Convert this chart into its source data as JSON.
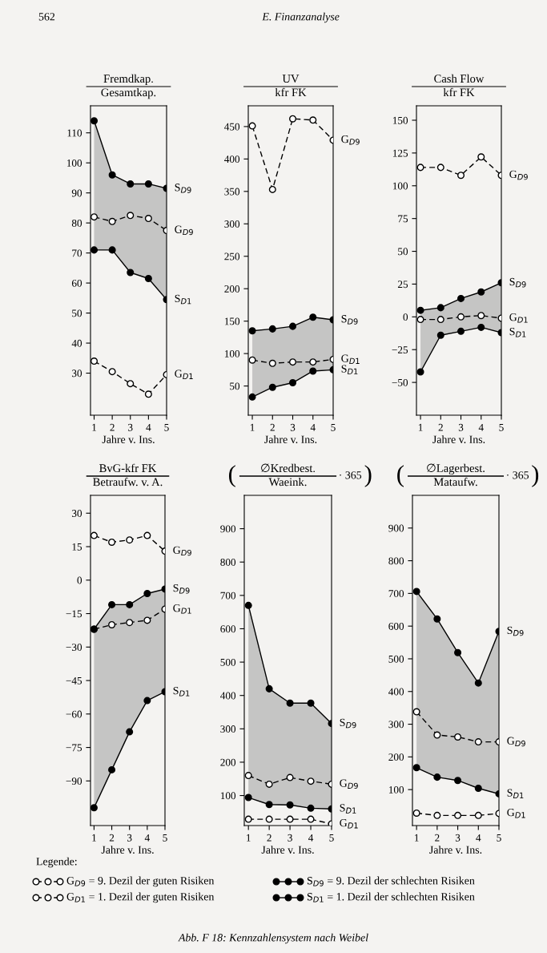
{
  "chart_data": [
    {
      "type": "line",
      "title": "Fremdkap.",
      "subtitle": "Gesamtkap.",
      "xlabel": "Jahre v. Ins.",
      "categories": [
        "1",
        "2",
        "3",
        "4",
        "5"
      ],
      "ylim": [
        16,
        119
      ],
      "yticks": [
        30,
        40,
        50,
        60,
        70,
        80,
        90,
        100,
        110
      ],
      "marker": "circle",
      "annotations": [
        "562",
        "E. Finanzanalyse"
      ],
      "series": [
        {
          "name": "G$_{D9}$",
          "color": "#000000",
          "line_style": "dashed",
          "values": [
            82,
            80.5,
            82.5,
            81.5,
            77.5
          ],
          "upper": [
            114,
            96,
            93,
            93,
            91.5
          ],
          "lower": [
            71,
            71,
            63.5,
            61.5,
            54.5
          ]
        },
        {
          "name": "G$_{D1}$",
          "color": "#000000",
          "line_style": "dashed",
          "values": [
            34,
            30.5,
            26.5,
            23,
            29.5
          ]
        },
        {
          "name": "S$_{D9}$",
          "color": "#000000",
          "line_style": "solid",
          "values": [
            114,
            96,
            93,
            93,
            91.5
          ]
        },
        {
          "name": "S$_{D1}$",
          "color": "#000000",
          "line_style": "solid",
          "values": [
            71,
            71,
            63.5,
            61.5,
            54.5
          ]
        }
      ]
    },
    {
      "type": "line",
      "title": "UV",
      "subtitle": "kfr FK",
      "xlabel": "Jahre v. Ins.",
      "categories": [
        "1",
        "2",
        "3",
        "4",
        "5"
      ],
      "ylim": [
        5,
        482
      ],
      "yticks": [
        50,
        100,
        150,
        200,
        250,
        300,
        350,
        400,
        450
      ],
      "marker": "circle",
      "series": [
        {
          "name": "G$_{D9}$",
          "color": "#000000",
          "line_style": "dashed",
          "values": [
            451,
            353,
            462,
            460,
            429
          ]
        },
        {
          "name": "G$_{D1}$",
          "color": "#000000",
          "line_style": "dashed",
          "values": [
            90,
            85,
            87,
            87,
            91
          ],
          "upper": [
            135,
            138,
            142,
            156,
            152
          ],
          "lower": [
            33,
            48,
            55,
            73,
            75
          ]
        },
        {
          "name": "S$_{D9}$",
          "color": "#000000",
          "line_style": "solid",
          "values": [
            135,
            138,
            142,
            156,
            152
          ]
        },
        {
          "name": "S$_{D1}$",
          "color": "#000000",
          "line_style": "solid",
          "values": [
            33,
            48,
            55,
            73,
            75
          ]
        }
      ]
    },
    {
      "type": "line",
      "title": "Cash Flow",
      "subtitle": "kfr FK",
      "xlabel": "Jahre v. Ins.",
      "categories": [
        "1",
        "2",
        "3",
        "4",
        "5"
      ],
      "ylim": [
        -75,
        161
      ],
      "yticks": [
        {
          "value": -50,
          "label": "−50"
        },
        {
          "value": -25,
          "label": "−25"
        },
        0,
        25,
        50,
        75,
        100,
        125,
        150
      ],
      "marker": "circle",
      "series": [
        {
          "name": "G$_{D9}$",
          "color": "#000000",
          "line_style": "dashed",
          "values": [
            114,
            114,
            108,
            122,
            108
          ]
        },
        {
          "name": "G$_{D1}$",
          "color": "#000000",
          "line_style": "dashed",
          "values": [
            -2,
            -2,
            0,
            1,
            -1
          ],
          "upper": [
            5,
            7,
            14,
            19,
            26
          ],
          "lower": [
            -42,
            -14,
            -11,
            -8,
            -12
          ]
        },
        {
          "name": "S$_{D9}$",
          "color": "#000000",
          "line_style": "solid",
          "values": [
            5,
            7,
            14,
            19,
            26
          ]
        },
        {
          "name": "S$_{D1}$",
          "color": "#000000",
          "line_style": "solid",
          "values": [
            -42,
            -14,
            -11,
            -8,
            -12
          ]
        }
      ]
    },
    {
      "type": "line",
      "title": "BvG-kfr FK",
      "subtitle": "Betraufw. v. A.",
      "xlabel": "Jahre v. Ins.",
      "categories": [
        "1",
        "2",
        "3",
        "4",
        "5"
      ],
      "ylim": [
        -110,
        38
      ],
      "yticks": [
        {
          "value": -90,
          "label": "−90"
        },
        {
          "value": -75,
          "label": "−75"
        },
        {
          "value": -60,
          "label": "−60"
        },
        {
          "value": -45,
          "label": "−45"
        },
        {
          "value": -30,
          "label": "−30"
        },
        {
          "value": -15,
          "label": "−15"
        },
        0,
        15,
        30
      ],
      "marker": "circle",
      "series": [
        {
          "name": "G$_{D9}$",
          "color": "#000000",
          "line_style": "dashed",
          "values": [
            20,
            17,
            18,
            20,
            13
          ]
        },
        {
          "name": "G$_{D1}$",
          "color": "#000000",
          "line_style": "dashed",
          "values": [
            -22,
            -20,
            -19,
            -18,
            -13
          ],
          "upper": [
            -22,
            -11,
            -11,
            -6,
            -4
          ],
          "lower": [
            -102,
            -85,
            -68,
            -54,
            -50
          ]
        },
        {
          "name": "S$_{D9}$",
          "color": "#000000",
          "line_style": "solid",
          "values": [
            -22,
            -11,
            -11,
            -6,
            -4
          ]
        },
        {
          "name": "S$_{D1}$",
          "color": "#000000",
          "line_style": "solid",
          "values": [
            -102,
            -85,
            -68,
            -54,
            -50
          ]
        }
      ]
    },
    {
      "type": "line",
      "title": "∅Kredbest.",
      "subtitle": "Waeink.",
      "xlabel": "Jahre v. Ins.",
      "categories": [
        "1",
        "2",
        "3",
        "4",
        "5"
      ],
      "ylim": [
        10,
        1000
      ],
      "yticks": [
        100,
        200,
        300,
        400,
        500,
        600,
        700,
        800,
        900
      ],
      "marker": "circle",
      "annotations": [
        "(",
        "· 365",
        ")"
      ],
      "series": [
        {
          "name": "G$_{D9}$",
          "color": "#000000",
          "line_style": "dashed",
          "values": [
            160,
            134,
            154,
            143,
            134
          ],
          "upper": [
            670,
            420,
            377,
            377,
            316
          ],
          "lower": [
            94,
            73,
            72,
            62,
            60
          ]
        },
        {
          "name": "G$_{D1}$",
          "color": "#000000",
          "line_style": "dashed",
          "values": [
            29,
            29,
            29,
            29,
            15
          ]
        },
        {
          "name": "S$_{D9}$",
          "color": "#000000",
          "line_style": "solid",
          "values": [
            670,
            420,
            377,
            377,
            316
          ]
        },
        {
          "name": "S$_{D1}$",
          "color": "#000000",
          "line_style": "solid",
          "values": [
            94,
            73,
            72,
            62,
            60
          ]
        }
      ]
    },
    {
      "type": "line",
      "title": "∅Lagerbest.",
      "subtitle": "Mataufw.",
      "xlabel": "Jahre v. Ins.",
      "categories": [
        "1",
        "2",
        "3",
        "4",
        "5"
      ],
      "ylim": [
        -10,
        1000
      ],
      "yticks": [
        100,
        200,
        300,
        400,
        500,
        600,
        700,
        800,
        900
      ],
      "marker": "circle",
      "legend": "bottom",
      "legend_title": "Legende:",
      "annotations": [
        "(",
        "· 365",
        ")",
        "G$_{D9}$ = 9. Dezil der guten Risiken",
        "G$_{D1}$ = 1. Dezil der guten Risiken",
        "S$_{D9}$ = 9. Dezil der schlechten Risiken",
        "S$_{D1}$ = 1. Dezil der schlechten Risiken",
        "Abb. F 18: Kennzahlensystem nach Weibel"
      ],
      "series": [
        {
          "name": "G$_{D9}$",
          "color": "#000000",
          "line_style": "dashed",
          "values": [
            338,
            267,
            261,
            246,
            246
          ],
          "upper": [
            706,
            622,
            519,
            426,
            584
          ],
          "lower": [
            167,
            138,
            128,
            104,
            87
          ]
        },
        {
          "name": "G$_{D1}$",
          "color": "#000000",
          "line_style": "dashed",
          "values": [
            28,
            21,
            21,
            21,
            27
          ]
        },
        {
          "name": "S$_{D9}$",
          "color": "#000000",
          "line_style": "solid",
          "values": [
            706,
            622,
            519,
            426,
            584
          ]
        },
        {
          "name": "S$_{D1}$",
          "color": "#000000",
          "line_style": "solid",
          "values": [
            167,
            138,
            128,
            104,
            87
          ]
        }
      ]
    }
  ]
}
